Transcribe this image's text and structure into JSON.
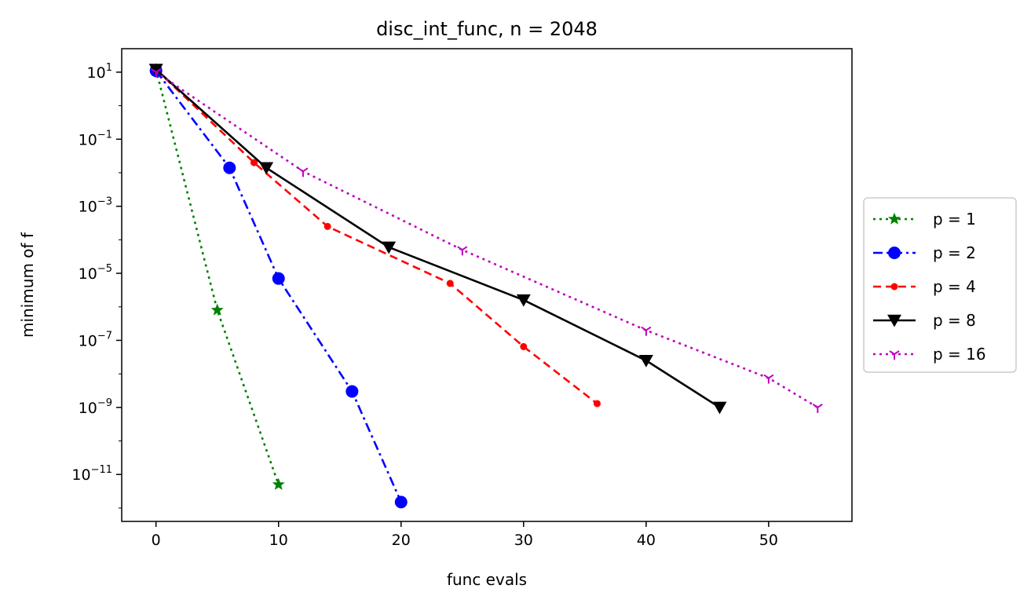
{
  "chart_data": {
    "type": "line",
    "title": "disc_int_func, n = 2048",
    "xlabel": "func evals",
    "ylabel": "minimum of f",
    "xlim": [
      -2.8,
      56.8
    ],
    "ylim_log10": [
      -12.4,
      1.7
    ],
    "yscale": "log",
    "grid": false,
    "legend_position": "outside-right",
    "x_ticks": [
      {
        "value": 0,
        "label": "0"
      },
      {
        "value": 10,
        "label": "10"
      },
      {
        "value": 20,
        "label": "20"
      },
      {
        "value": 30,
        "label": "30"
      },
      {
        "value": 40,
        "label": "40"
      },
      {
        "value": 50,
        "label": "50"
      }
    ],
    "y_ticks": [
      {
        "exp": 1,
        "base": "10",
        "sup": "1"
      },
      {
        "exp": -1,
        "base": "10",
        "sup": "−1"
      },
      {
        "exp": -3,
        "base": "10",
        "sup": "−3"
      },
      {
        "exp": -5,
        "base": "10",
        "sup": "−5"
      },
      {
        "exp": -7,
        "base": "10",
        "sup": "−7"
      },
      {
        "exp": -9,
        "base": "10",
        "sup": "−9"
      },
      {
        "exp": -11,
        "base": "10",
        "sup": "−11"
      }
    ],
    "series": [
      {
        "name": "p = 1",
        "color": "#008000",
        "dash": "3,5",
        "marker": "star",
        "x": [
          0,
          5,
          10
        ],
        "y": [
          12,
          8e-07,
          5e-12
        ]
      },
      {
        "name": "p = 2",
        "color": "#0000ff",
        "dash": "12,5,3,5",
        "marker": "circle",
        "x": [
          0,
          6,
          10,
          16,
          20
        ],
        "y": [
          11,
          0.014,
          7e-06,
          3e-09,
          1.5e-12
        ]
      },
      {
        "name": "p = 4",
        "color": "#ff0000",
        "dash": "10,6",
        "marker": "dot",
        "x": [
          0,
          8,
          14,
          24,
          30,
          36
        ],
        "y": [
          12,
          0.02,
          0.00025,
          5e-06,
          6.5e-08,
          1.3e-09
        ]
      },
      {
        "name": "p = 8",
        "color": "#000000",
        "dash": "",
        "marker": "triangle-down",
        "x": [
          0,
          9,
          19,
          30,
          40,
          46
        ],
        "y": [
          12,
          0.014,
          6e-05,
          1.6e-06,
          2.5e-08,
          1e-09
        ]
      },
      {
        "name": "p = 16",
        "color": "#bf00bf",
        "dash": "3,5",
        "marker": "tri-down",
        "x": [
          0,
          12,
          25,
          40,
          50,
          54
        ],
        "y": [
          10,
          0.011,
          5e-05,
          2e-07,
          7.5e-09,
          1e-09
        ]
      }
    ]
  }
}
